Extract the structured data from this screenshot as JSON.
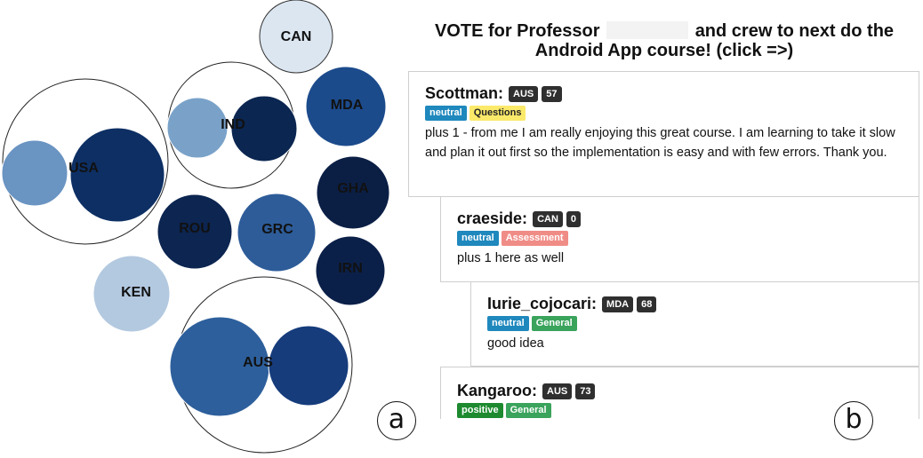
{
  "panel_labels": {
    "a": "a",
    "b": "b"
  },
  "bubbles": {
    "groups": [
      {
        "label": "USA",
        "members": [
          {
            "color": "#6a94c2"
          },
          {
            "color": "#0d2f64"
          }
        ]
      },
      {
        "label": "IND",
        "members": [
          {
            "color": "#7aa2c9"
          },
          {
            "color": "#0b2650"
          }
        ]
      },
      {
        "label": "AUS",
        "members": [
          {
            "color": "#2d5f9c"
          },
          {
            "color": "#163c7c"
          }
        ]
      }
    ],
    "singles": [
      {
        "label": "CAN",
        "color": "#dbe6f1"
      },
      {
        "label": "MDA",
        "color": "#1c4b8c"
      },
      {
        "label": "GHA",
        "color": "#0b1f45"
      },
      {
        "label": "ROU",
        "color": "#0c2551"
      },
      {
        "label": "GRC",
        "color": "#2d5c99"
      },
      {
        "label": "IRN",
        "color": "#0b2049"
      },
      {
        "label": "KEN",
        "color": "#b3c9e0"
      }
    ]
  },
  "thread": {
    "title_line1_before": "VOTE for Professor",
    "title_line1_after": "and crew to next do the",
    "title_line2": "Android App course! (click =>)",
    "posts": [
      {
        "author": "Scottman:",
        "country": "AUS",
        "score": "57",
        "tags": [
          {
            "text": "neutral",
            "bg": "#1f88bd",
            "fg": "#ffffff"
          },
          {
            "text": "Questions",
            "bg": "#fbe96a",
            "fg": "#222222"
          }
        ],
        "body": "plus 1 - from me I am really enjoying this great course. I am learning to take it slow and plan it out first so the implementation is easy and with few errors. Thank you."
      },
      {
        "author": "craeside:",
        "country": "CAN",
        "score": "0",
        "tags": [
          {
            "text": "neutral",
            "bg": "#1f88bd",
            "fg": "#ffffff"
          },
          {
            "text": "Assessment",
            "bg": "#f08c86",
            "fg": "#ffffff"
          }
        ],
        "body": "plus 1 here as well"
      },
      {
        "author": "Iurie_cojocari:",
        "country": "MDA",
        "score": "68",
        "tags": [
          {
            "text": "neutral",
            "bg": "#1f88bd",
            "fg": "#ffffff"
          },
          {
            "text": "General",
            "bg": "#3aa35c",
            "fg": "#ffffff"
          }
        ],
        "body": "good idea"
      },
      {
        "author": "Kangaroo:",
        "country": "AUS",
        "score": "73",
        "tags": [
          {
            "text": "positive",
            "bg": "#1d8a2f",
            "fg": "#ffffff"
          },
          {
            "text": "General",
            "bg": "#3aa35c",
            "fg": "#ffffff"
          }
        ],
        "body": ""
      }
    ]
  }
}
